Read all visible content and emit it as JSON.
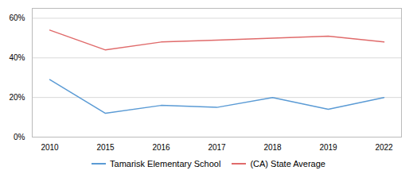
{
  "chart_data": {
    "type": "line",
    "categories": [
      "2010",
      "2015",
      "2016",
      "2017",
      "2018",
      "2019",
      "2022"
    ],
    "series": [
      {
        "name": "Tamarisk Elementary School",
        "color": "#5b9bd5",
        "values": [
          0.29,
          0.12,
          0.16,
          0.15,
          0.2,
          0.14,
          0.2
        ]
      },
      {
        "name": "(CA) State Average",
        "color": "#e06b6b",
        "values": [
          0.54,
          0.44,
          0.48,
          0.49,
          0.5,
          0.51,
          0.48
        ]
      }
    ],
    "ylim": [
      0,
      0.65
    ],
    "yticks": [
      {
        "value": 0.0,
        "label": "0%"
      },
      {
        "value": 0.2,
        "label": "20%"
      },
      {
        "value": 0.4,
        "label": "40%"
      },
      {
        "value": 0.6,
        "label": "60%"
      }
    ],
    "grid": true,
    "legend": "bottom"
  }
}
